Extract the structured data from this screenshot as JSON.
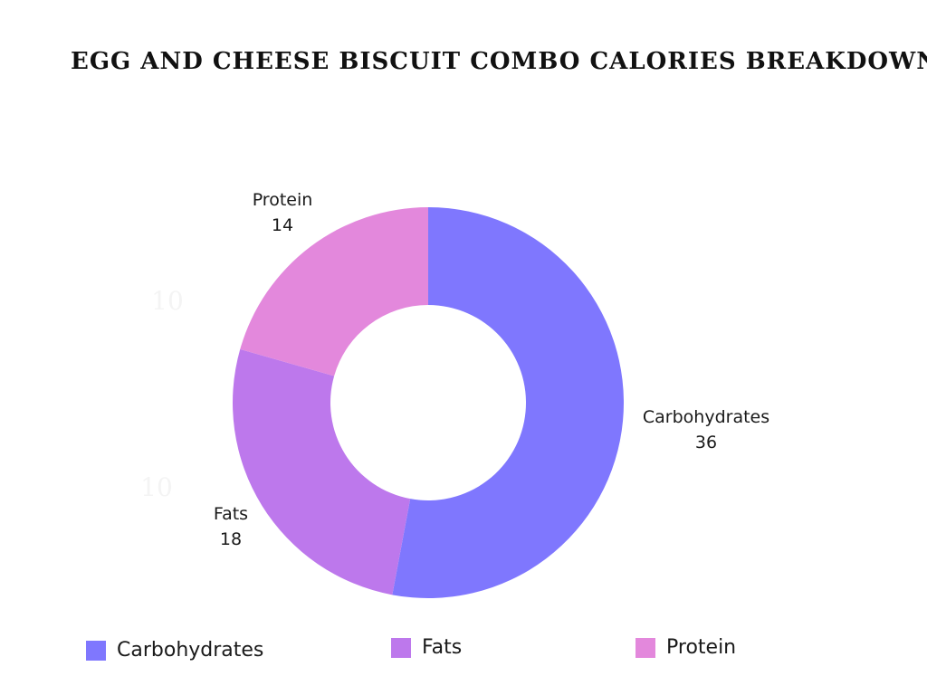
{
  "chart_data": {
    "type": "pie",
    "variant": "donut",
    "title": "EGG AND CHEESE BISCUIT COMBO CALORIES BREAKDOWN",
    "categories": [
      "Carbohydrates",
      "Fats",
      "Protein"
    ],
    "values": [
      36,
      18,
      14
    ],
    "colors": [
      "#7f77fe",
      "#bd78ec",
      "#e388dc"
    ],
    "faint_labels": [
      "10",
      "10"
    ],
    "legend_position": "bottom"
  }
}
